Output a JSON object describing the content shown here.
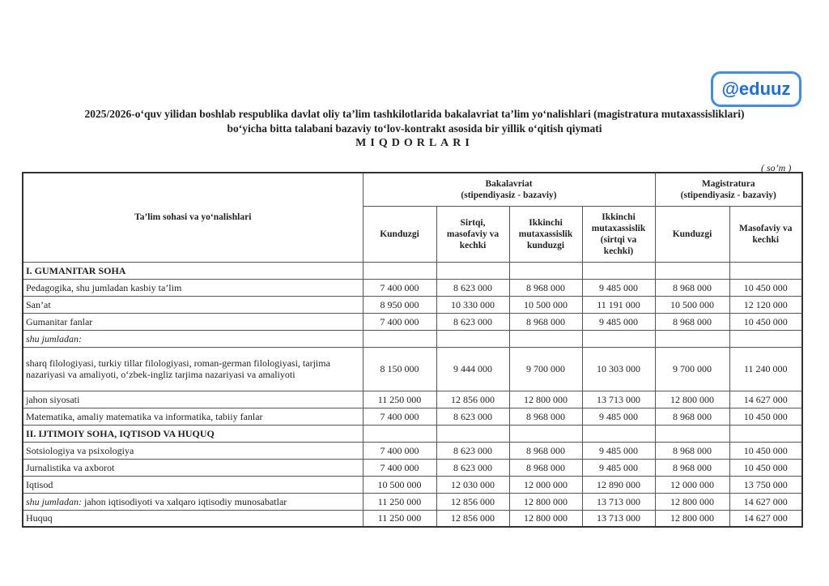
{
  "logo": "@eduuz",
  "title": {
    "line1": "2025/2026-o‘quv yilidan boshlab respublika davlat oliy ta’lim tashkilotlarida bakalavriat ta’lim yo‘nalishlari (magistratura mutaxassisliklari)",
    "line2": "bo‘yicha bitta talabani bazaviy to‘lov-kontrakt asosida bir yillik o‘qitish qiymati",
    "line3": "MIQDORLARI"
  },
  "unit": "( so’m )",
  "header": {
    "first": "Ta’lim sohasi va yo‘nalishlari",
    "bak": "Bakalavriat",
    "bak_sub": "(stipendiyasiz - bazaviy)",
    "mag": "Magistratura",
    "mag_sub": "(stipendiyasiz - bazaviy)",
    "cols": [
      "Kunduzgi",
      "Sirtqi, masofaviy va kechki",
      "Ikkinchi mutaxassislik kunduzgi",
      "Ikkinchi mutaxassislik (sirtqi va kechki)",
      "Kunduzgi",
      "Masofaviy va kechki"
    ]
  },
  "rows": [
    {
      "label": "I. GUMANITAR SOHA",
      "type": "section",
      "values": []
    },
    {
      "label": "Pedagogika, shu jumladan kasbiy ta’lim",
      "values": [
        "7 400 000",
        "8 623 000",
        "8 968 000",
        "9 485 000",
        "8 968 000",
        "10 450 000"
      ]
    },
    {
      "label": "San’at",
      "values": [
        "8 950 000",
        "10 330 000",
        "10 500 000",
        "11 191 000",
        "10 500 000",
        "12 120 000"
      ]
    },
    {
      "label": "Gumanitar fanlar",
      "values": [
        "7 400 000",
        "8 623 000",
        "8 968 000",
        "9 485 000",
        "8 968 000",
        "10 450 000"
      ]
    },
    {
      "label": "shu jumladan:",
      "type": "italic",
      "values": []
    },
    {
      "label": "sharq filologiyasi, turkiy tillar filologiyasi, roman-german filologiyasi, tarjima nazariyasi va amaliyoti, o‘zbek-ingliz tarjima nazariyasi va amaliyoti",
      "tall": true,
      "values": [
        "8 150 000",
        "9 444 000",
        "9 700 000",
        "10 303 000",
        "9 700 000",
        "11 240 000"
      ]
    },
    {
      "label": "jahon siyosati",
      "values": [
        "11 250 000",
        "12 856 000",
        "12 800 000",
        "13 713 000",
        "12 800 000",
        "14 627 000"
      ]
    },
    {
      "label": "Matematika, amaliy matematika va informatika, tabiiy fanlar",
      "values": [
        "7 400 000",
        "8 623 000",
        "8 968 000",
        "9 485 000",
        "8 968 000",
        "10 450 000"
      ]
    },
    {
      "label": "II. IJTIMOIY SOHA, IQTISOD VA HUQUQ",
      "type": "section",
      "values": []
    },
    {
      "label": "Sotsiologiya va psixologiya",
      "values": [
        "7 400 000",
        "8 623 000",
        "8 968 000",
        "9 485 000",
        "8 968 000",
        "10 450 000"
      ]
    },
    {
      "label": "Jurnalistika va axborot",
      "values": [
        "7 400 000",
        "8 623 000",
        "8 968 000",
        "9 485 000",
        "8 968 000",
        "10 450 000"
      ]
    },
    {
      "label": "Iqtisod",
      "values": [
        "10 500 000",
        "12 030 000",
        "12 000 000",
        "12 890 000",
        "12 000 000",
        "13 750 000"
      ]
    },
    {
      "label": "jahon iqtisodiyoti va xalqaro iqtisodiy munosabatlar",
      "prefix": "shu jumladan:",
      "values": [
        "11 250 000",
        "12 856 000",
        "12 800 000",
        "13 713 000",
        "12 800 000",
        "14 627 000"
      ]
    },
    {
      "label": "Huquq",
      "values": [
        "11 250 000",
        "12 856 000",
        "12 800 000",
        "13 713 000",
        "12 800 000",
        "14 627 000"
      ]
    }
  ]
}
